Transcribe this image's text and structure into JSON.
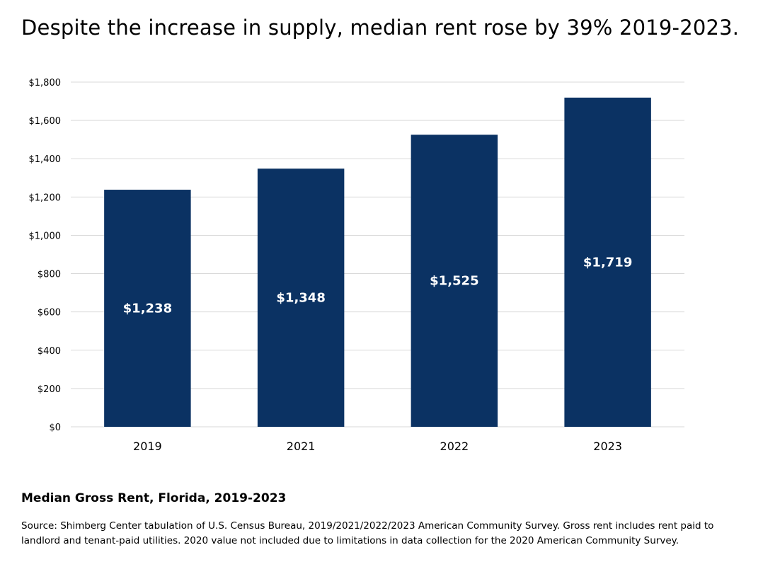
{
  "title": "Despite the increase in supply, median rent rose by 39% 2019-2023.",
  "caption": "Median Gross Rent, Florida, 2019-2023",
  "source": "Source: Shimberg Center tabulation of U.S. Census Bureau, 2019/2021/2022/2023 American Community Survey. Gross rent includes rent paid to landlord and tenant-paid utilities. 2020 value not included due to limitations in data collection for the 2020 American Community Survey.",
  "colors": {
    "bar": "#0b3263",
    "grid": "#d9d9d9",
    "label": "#ffffff"
  },
  "chart_data": {
    "type": "bar",
    "title": "Despite the increase in supply, median rent rose by 39% 2019-2023.",
    "xlabel": "",
    "ylabel": "",
    "categories": [
      "2019",
      "2021",
      "2022",
      "2023"
    ],
    "values": [
      1238,
      1348,
      1525,
      1719
    ],
    "data_labels": [
      "$1,238",
      "$1,348",
      "$1,525",
      "$1,719"
    ],
    "ylim": [
      0,
      1800
    ],
    "yticks": [
      0,
      200,
      400,
      600,
      800,
      1000,
      1200,
      1400,
      1600,
      1800
    ],
    "ytick_labels": [
      "$0",
      "$200",
      "$400",
      "$600",
      "$800",
      "$1,000",
      "$1,200",
      "$1,400",
      "$1,600",
      "$1,800"
    ],
    "grid": true,
    "legend": "none"
  }
}
